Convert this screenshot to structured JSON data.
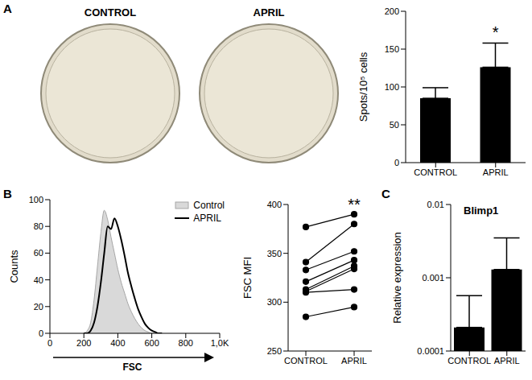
{
  "chart_data": [
    {
      "panel": "A",
      "type": "image",
      "labels": [
        "CONTROL",
        "APRIL"
      ]
    },
    {
      "type": "bar",
      "categories": [
        "CONTROL",
        "APRIL"
      ],
      "values": [
        85,
        126
      ],
      "errors": [
        14,
        32
      ],
      "color": "#000000",
      "ylabel": "Spots/10⁵ cells",
      "ylim": [
        0,
        200
      ],
      "yticks": [
        0,
        50,
        100,
        150,
        200
      ],
      "annotations": [
        {
          "text": "*",
          "category": "APRIL"
        }
      ]
    },
    {
      "panel": "B",
      "type": "area",
      "x": [
        200,
        220,
        240,
        260,
        280,
        300,
        320,
        340,
        360,
        380,
        400,
        420,
        440,
        460,
        480,
        500,
        520,
        540,
        560,
        580,
        600,
        620,
        640,
        660
      ],
      "series": [
        {
          "name": "Control",
          "type": "area",
          "color": "#d9d9d9",
          "values": [
            0,
            2,
            8,
            25,
            50,
            75,
            92,
            85,
            72,
            60,
            48,
            38,
            30,
            22,
            16,
            11,
            7,
            4,
            2,
            1,
            0,
            0,
            0,
            0
          ]
        },
        {
          "name": "APRIL",
          "type": "line",
          "color": "#000000",
          "values": [
            0,
            0,
            2,
            8,
            20,
            38,
            60,
            80,
            78,
            86,
            80,
            70,
            58,
            45,
            35,
            26,
            18,
            12,
            7,
            4,
            2,
            1,
            0,
            0
          ]
        }
      ],
      "xlabel": "FSC",
      "ylabel": "Counts",
      "xlim": [
        0,
        1000
      ],
      "xticks": [
        0,
        200,
        400,
        600,
        800,
        {
          "value": 1000,
          "label": "1,0K"
        }
      ],
      "ylim": [
        0,
        100
      ],
      "yticks": [
        0,
        20,
        40,
        60,
        80,
        100
      ],
      "legend": "upper right"
    },
    {
      "type": "line",
      "categories": [
        "CONTROL",
        "APRIL"
      ],
      "series": [
        {
          "color": "#000000",
          "values": [
            377,
            390
          ]
        },
        {
          "color": "#000000",
          "values": [
            341,
            380
          ]
        },
        {
          "color": "#000000",
          "values": [
            333,
            352
          ]
        },
        {
          "color": "#000000",
          "values": [
            321,
            343
          ]
        },
        {
          "color": "#000000",
          "values": [
            313,
            337
          ]
        },
        {
          "color": "#000000",
          "values": [
            311,
            334
          ]
        },
        {
          "color": "#000000",
          "values": [
            310,
            313
          ]
        },
        {
          "color": "#000000",
          "values": [
            285,
            295
          ]
        }
      ],
      "marker": "circle",
      "ylabel": "FSC MFI",
      "ylim": [
        250,
        400
      ],
      "yticks": [
        250,
        300,
        350,
        400
      ],
      "annotations": [
        {
          "text": "**",
          "category": "APRIL"
        }
      ]
    },
    {
      "panel": "C",
      "type": "bar",
      "title": "Blimp1",
      "categories": [
        "CONTROL",
        "APRIL"
      ],
      "values": [
        0.00021,
        0.0013
      ],
      "errors": [
        0.00036,
        0.0022
      ],
      "color": "#000000",
      "ylabel": "Relative expression",
      "log": "y",
      "ylim": [
        0.0001,
        0.01
      ],
      "yticks": [
        0.0001,
        0.001,
        0.01
      ]
    }
  ]
}
